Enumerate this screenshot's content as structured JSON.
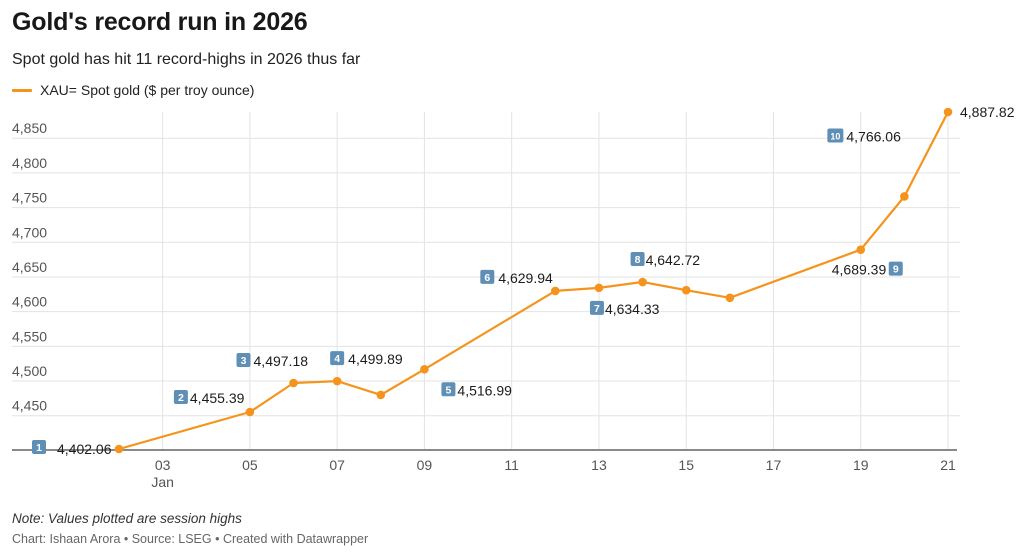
{
  "header": {
    "title": "Gold's record run in 2026",
    "subtitle": "Spot gold has hit 11 record-highs in 2026 thus far"
  },
  "footer": {
    "note": "Note: Values plotted are session highs",
    "credit": "Chart: Ishaan Arora • Source: LSEG • Created with Datawrapper"
  },
  "colors": {
    "line": "#f5941d",
    "grid": "#e3e3e3",
    "badge": "#5f8fb4"
  },
  "chart_data": {
    "type": "line",
    "title": "Gold's record run in 2026",
    "subtitle": "Spot gold has hit 11 record-highs in 2026 thus far",
    "xlabel": "",
    "ylabel": "",
    "ylim": [
      4400,
      4900
    ],
    "xlim": [
      "2026-01-01",
      "2026-01-21"
    ],
    "y_ticks": [
      4450,
      4500,
      4550,
      4600,
      4650,
      4700,
      4750,
      4800,
      4850
    ],
    "y_tick_labels": [
      "4,450",
      "4,500",
      "4,550",
      "4,600",
      "4,650",
      "4,700",
      "4,750",
      "4,800",
      "4,850"
    ],
    "x_ticks": [
      "2026-01-03",
      "2026-01-05",
      "2026-01-07",
      "2026-01-09",
      "2026-01-11",
      "2026-01-13",
      "2026-01-15",
      "2026-01-17",
      "2026-01-19",
      "2026-01-21"
    ],
    "x_tick_labels": [
      "03",
      "05",
      "07",
      "09",
      "11",
      "13",
      "15",
      "17",
      "19",
      "21"
    ],
    "x_month_label": "Jan",
    "grid": true,
    "legend": {
      "position": "top-left",
      "label": "XAU= Spot gold ($ per troy ounce)"
    },
    "series": [
      {
        "name": "XAU= Spot gold ($ per troy ounce)",
        "points": [
          {
            "x": "2026-01-02",
            "y": 4402.06
          },
          {
            "x": "2026-01-05",
            "y": 4455.39
          },
          {
            "x": "2026-01-06",
            "y": 4497.18
          },
          {
            "x": "2026-01-07",
            "y": 4499.89
          },
          {
            "x": "2026-01-08",
            "y": 4480
          },
          {
            "x": "2026-01-09",
            "y": 4516.99
          },
          {
            "x": "2026-01-12",
            "y": 4629.94
          },
          {
            "x": "2026-01-13",
            "y": 4634.33
          },
          {
            "x": "2026-01-14",
            "y": 4642.72
          },
          {
            "x": "2026-01-15",
            "y": 4631
          },
          {
            "x": "2026-01-16",
            "y": 4620
          },
          {
            "x": "2026-01-19",
            "y": 4689.39
          },
          {
            "x": "2026-01-20",
            "y": 4766.06
          },
          {
            "x": "2026-01-21",
            "y": 4887.82
          }
        ]
      }
    ],
    "annotations": [
      {
        "badge": "1",
        "text": "4,402.06",
        "x": "2026-01-02",
        "y": 4402.06,
        "pos": "left"
      },
      {
        "badge": "2",
        "text": "4,455.39",
        "x": "2026-01-05",
        "y": 4455.39,
        "pos": "above-left"
      },
      {
        "badge": "3",
        "text": "4,497.18",
        "x": "2026-01-06",
        "y": 4497.18,
        "pos": "above"
      },
      {
        "badge": "4",
        "text": "4,499.89",
        "x": "2026-01-07",
        "y": 4499.89,
        "pos": "above"
      },
      {
        "badge": "5",
        "text": "4,516.99",
        "x": "2026-01-09",
        "y": 4516.99,
        "pos": "below"
      },
      {
        "badge": "6",
        "text": "4,629.94",
        "x": "2026-01-12",
        "y": 4629.94,
        "pos": "above-left"
      },
      {
        "badge": "7",
        "text": "4,634.33",
        "x": "2026-01-13",
        "y": 4634.33,
        "pos": "below"
      },
      {
        "badge": "8",
        "text": "4,642.72",
        "x": "2026-01-14",
        "y": 4642.72,
        "pos": "above"
      },
      {
        "badge": "9",
        "text": "4,689.39",
        "x": "2026-01-19",
        "y": 4689.39,
        "pos": "below"
      },
      {
        "badge": "10",
        "text": "4,766.06",
        "x": "2026-01-20",
        "y": 4766.06,
        "pos": "above-left"
      },
      {
        "text": "4,887.82",
        "x": "2026-01-21",
        "y": 4887.82,
        "pos": "right"
      }
    ]
  }
}
